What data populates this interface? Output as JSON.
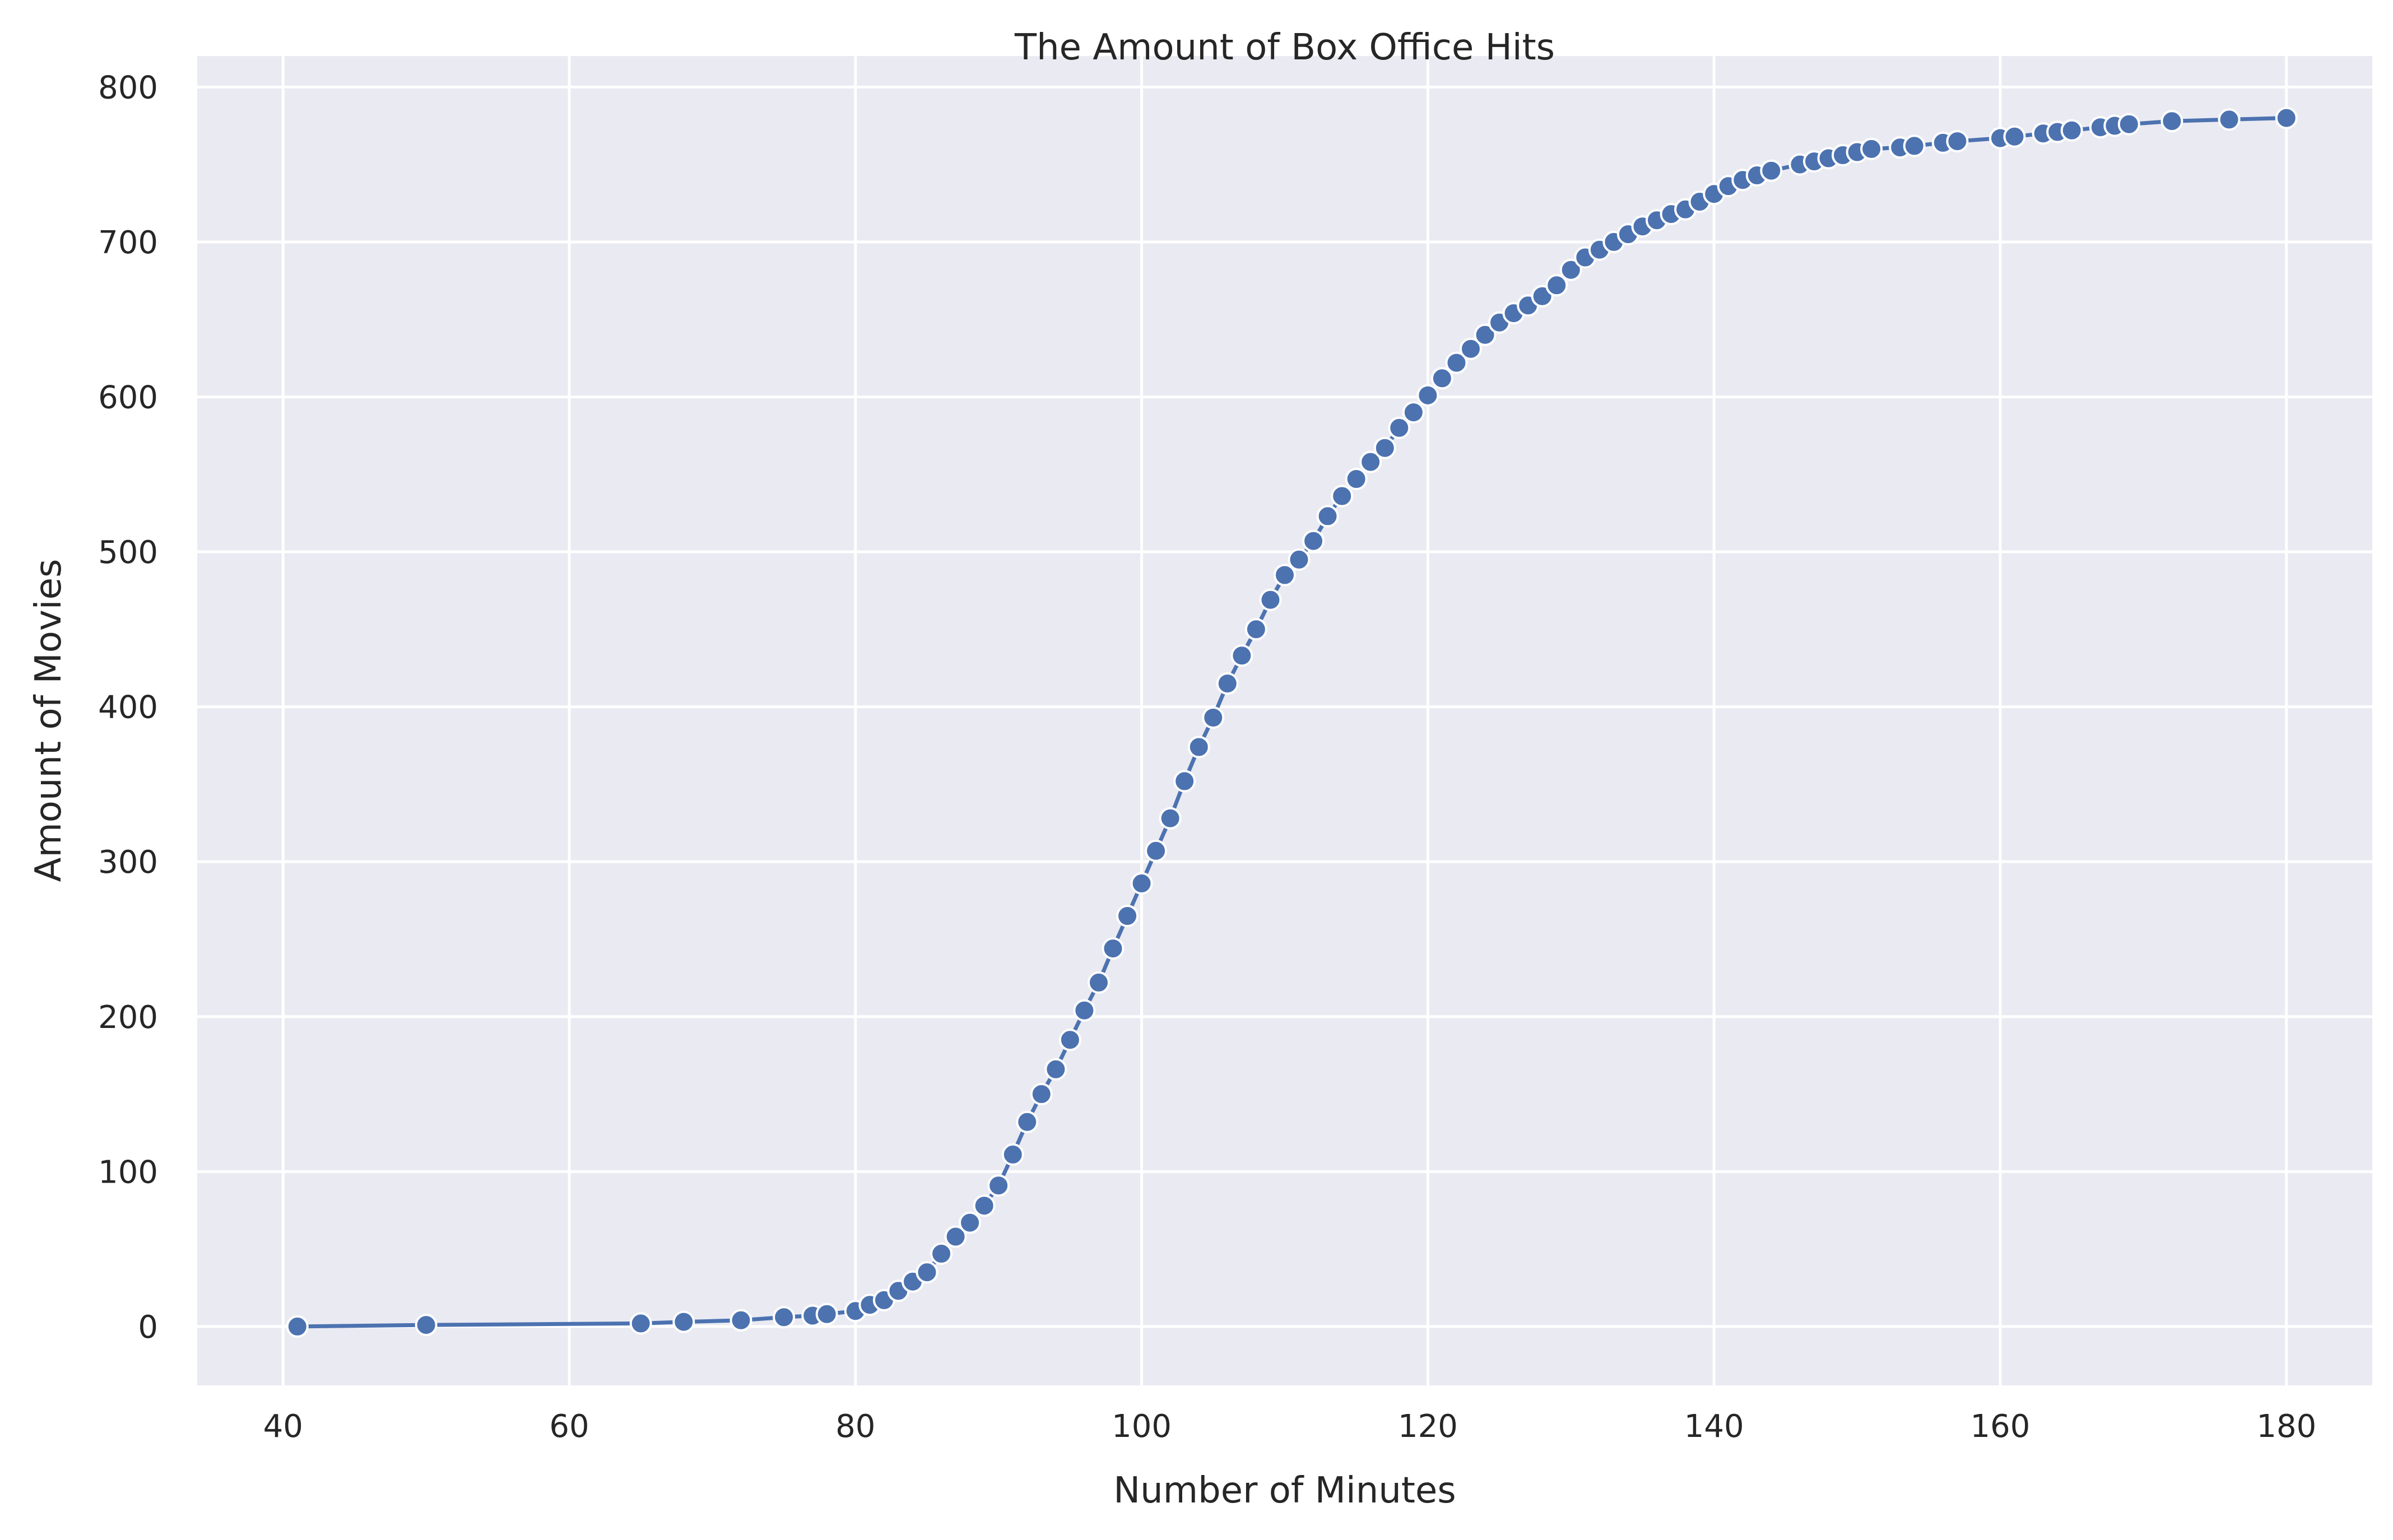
{
  "chart_data": {
    "type": "line",
    "title": "The Amount of Box Office Hits",
    "xlabel": "Number of Minutes",
    "ylabel": "Amount of Movies",
    "xlim": [
      34,
      186
    ],
    "ylim": [
      -38,
      820
    ],
    "x_ticks": [
      40,
      60,
      80,
      100,
      120,
      140,
      160,
      180
    ],
    "y_ticks": [
      0,
      100,
      200,
      300,
      400,
      500,
      600,
      700,
      800
    ],
    "grid": true,
    "legend": "none",
    "marker": "circle",
    "colors": {
      "series": "#4c72b0",
      "background": "#eaeaf2",
      "grid": "#ffffff",
      "text": "#262626"
    },
    "series": [
      {
        "x": [
          41,
          50,
          65,
          68,
          72,
          75,
          77,
          78,
          80,
          81,
          82,
          83,
          84,
          85,
          86,
          87,
          88,
          89,
          90,
          91,
          92,
          93,
          94,
          95,
          96,
          97,
          98,
          99,
          100,
          101,
          102,
          103,
          104,
          105,
          106,
          107,
          108,
          109,
          110,
          111,
          112,
          113,
          114,
          115,
          116,
          117,
          118,
          119,
          120,
          121,
          122,
          123,
          124,
          125,
          126,
          127,
          128,
          129,
          130,
          131,
          132,
          133,
          134,
          135,
          136,
          137,
          138,
          139,
          140,
          141,
          142,
          143,
          144,
          146,
          147,
          148,
          149,
          150,
          151,
          153,
          154,
          156,
          157,
          160,
          161,
          163,
          164,
          165,
          167,
          168,
          169,
          172,
          176,
          180
        ],
        "y": [
          0,
          1,
          2,
          3,
          4,
          6,
          7,
          8,
          10,
          14,
          17,
          23,
          29,
          35,
          47,
          58,
          67,
          78,
          91,
          111,
          132,
          150,
          166,
          185,
          204,
          222,
          244,
          265,
          286,
          307,
          328,
          352,
          374,
          393,
          415,
          433,
          450,
          469,
          485,
          495,
          507,
          523,
          536,
          547,
          558,
          567,
          580,
          590,
          601,
          612,
          622,
          631,
          640,
          648,
          654,
          659,
          665,
          672,
          682,
          690,
          695,
          700,
          705,
          710,
          714,
          718,
          721,
          726,
          731,
          736,
          740,
          743,
          746,
          750,
          752,
          754,
          756,
          758,
          760,
          761,
          762,
          764,
          765,
          767,
          768,
          770,
          771,
          772,
          774,
          775,
          776,
          778,
          779,
          780
        ]
      }
    ]
  }
}
